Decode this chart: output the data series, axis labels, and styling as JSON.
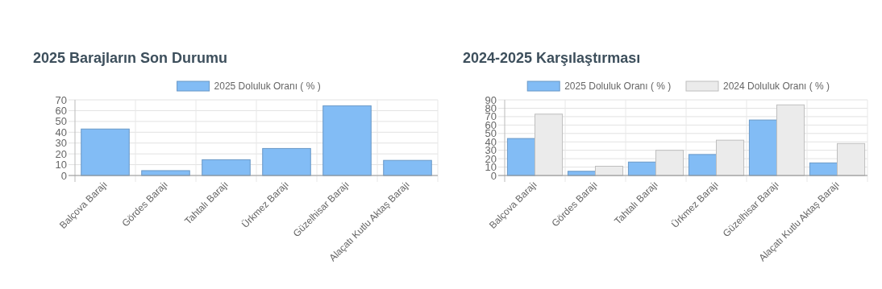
{
  "chart_data": [
    {
      "type": "bar",
      "title": "2025 Barajların Son Durumu",
      "categories": [
        "Balçova Barajı",
        "Gördes Barajı",
        "Tahtalı Barajı",
        "Ürkmez Barajı",
        "Güzelhisar Barajı",
        "Alaçatı Kutlu Aktaş Barajı"
      ],
      "series": [
        {
          "name": "2025 Doluluk Oranı ( % )",
          "color": "#82bcf5",
          "values": [
            43,
            4.5,
            14.6,
            25,
            64.5,
            14
          ]
        }
      ],
      "ylim": [
        0,
        70
      ],
      "yticks": [
        0,
        10,
        20,
        30,
        40,
        50,
        60,
        70
      ],
      "grid": true,
      "legend": "top"
    },
    {
      "type": "bar",
      "title": "2024-2025 Karşılaştırması",
      "categories": [
        "Balçova Barajı",
        "Gördes Barajı",
        "Tahtalı Barajı",
        "Ürkmez Barajı",
        "Güzelhisar Barajı",
        "Alaçatı Kutlu Aktaş Barajı"
      ],
      "series": [
        {
          "name": "2025 Doluluk Oranı ( % )",
          "color": "#82bcf5",
          "values": [
            44,
            5,
            16,
            25,
            66,
            15
          ]
        },
        {
          "name": "2024 Doluluk Oranı ( % )",
          "color": "#ebebeb",
          "values": [
            73,
            11,
            30,
            42,
            84,
            38
          ]
        }
      ],
      "ylim": [
        0,
        90
      ],
      "yticks": [
        0,
        10,
        20,
        30,
        40,
        50,
        60,
        70,
        80,
        90
      ],
      "grid": true,
      "legend": "top"
    }
  ]
}
